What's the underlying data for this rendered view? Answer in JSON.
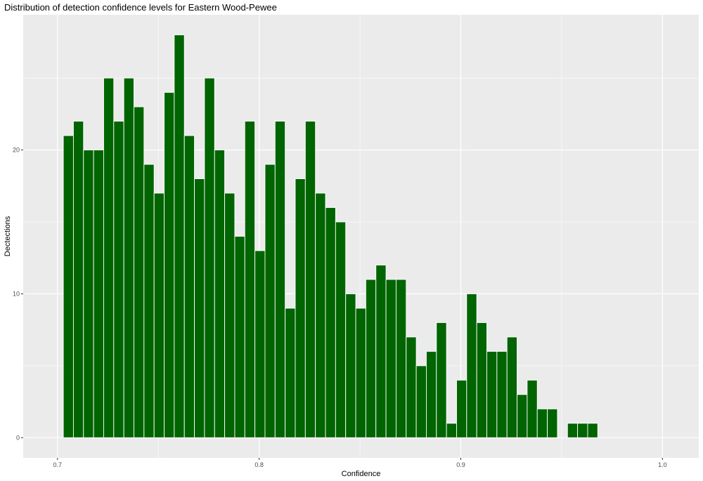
{
  "chart_data": {
    "type": "bar",
    "title": "Distribution of detection confidence levels for Eastern Wood-Pewee",
    "xlabel": "Confidence",
    "ylabel": "Dectections",
    "xlim": [
      0.683,
      1.018
    ],
    "ylim": [
      -1.4,
      29.4
    ],
    "x_ticks": [
      0.7,
      0.8,
      0.9,
      1.0
    ],
    "x_tick_labels": [
      "0.7",
      "0.8",
      "0.9",
      "1.0"
    ],
    "y_ticks": [
      0,
      10,
      20
    ],
    "y_tick_labels": [
      "0",
      "10",
      "20"
    ],
    "bin_width": 0.005,
    "bin_centers": [
      0.7054,
      0.7104,
      0.7154,
      0.7204,
      0.7254,
      0.7304,
      0.7354,
      0.7404,
      0.7454,
      0.7504,
      0.7554,
      0.7604,
      0.7654,
      0.7704,
      0.7754,
      0.7804,
      0.7854,
      0.7904,
      0.7954,
      0.8004,
      0.8054,
      0.8104,
      0.8154,
      0.8204,
      0.8254,
      0.8304,
      0.8354,
      0.8404,
      0.8454,
      0.8504,
      0.8554,
      0.8604,
      0.8654,
      0.8704,
      0.8754,
      0.8804,
      0.8854,
      0.8904,
      0.8954,
      0.9004,
      0.9054,
      0.9104,
      0.9154,
      0.9204,
      0.9254,
      0.9304,
      0.9354,
      0.9404,
      0.9454,
      0.9504,
      0.9554,
      0.9604,
      0.9654
    ],
    "values": [
      21,
      22,
      20,
      20,
      25,
      22,
      25,
      23,
      19,
      17,
      24,
      28,
      21,
      18,
      25,
      20,
      17,
      14,
      22,
      13,
      19,
      22,
      9,
      18,
      22,
      17,
      16,
      15,
      10,
      9,
      11,
      12,
      11,
      11,
      7,
      5,
      6,
      8,
      1,
      4,
      10,
      8,
      6,
      6,
      7,
      3,
      4,
      2,
      2,
      0,
      1,
      1,
      1
    ],
    "bar_color": "#006400",
    "panel_color": "#ebebeb",
    "grid": true
  }
}
